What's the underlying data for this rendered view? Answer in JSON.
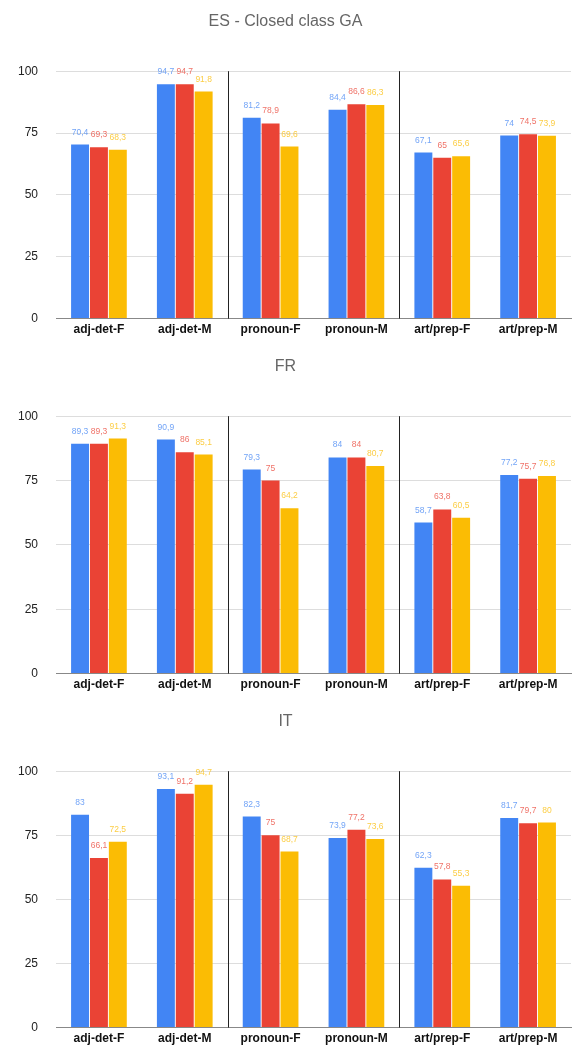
{
  "chart_data": [
    {
      "type": "bar",
      "title": "ES - Closed class GA",
      "categories": [
        "adj-det-F",
        "adj-det-M",
        "pronoun-F",
        "pronoun-M",
        "art/prep-F",
        "art/prep-M"
      ],
      "ylim": [
        0,
        100
      ],
      "yticks": [
        0,
        25,
        50,
        75,
        100
      ],
      "grid": "y",
      "series": [
        {
          "color": "#4285f4",
          "values": [
            70.4,
            94.7,
            81.2,
            84.4,
            67.1,
            74
          ],
          "value_labels": [
            "70,4",
            "94,7",
            "81,2",
            "84,4",
            "67,1",
            "74"
          ]
        },
        {
          "color": "#ea4335",
          "values": [
            69.3,
            94.7,
            78.9,
            86.6,
            65,
            74.5
          ],
          "value_labels": [
            "69,3",
            "94,7",
            "78,9",
            "86,6",
            "65",
            "74,5"
          ]
        },
        {
          "color": "#fbbc04",
          "values": [
            68.3,
            91.8,
            69.6,
            86.3,
            65.6,
            73.9
          ],
          "value_labels": [
            "68,3",
            "91,8",
            "69,6",
            "86,3",
            "65,6",
            "73,9"
          ]
        }
      ]
    },
    {
      "type": "bar",
      "title": "FR",
      "categories": [
        "adj-det-F",
        "adj-det-M",
        "pronoun-F",
        "pronoun-M",
        "art/prep-F",
        "art/prep-M"
      ],
      "ylim": [
        0,
        100
      ],
      "yticks": [
        0,
        25,
        50,
        75,
        100
      ],
      "grid": "y",
      "series": [
        {
          "color": "#4285f4",
          "values": [
            89.3,
            90.9,
            79.3,
            84,
            58.7,
            77.2
          ],
          "value_labels": [
            "89,3",
            "90,9",
            "79,3",
            "84",
            "58,7",
            "77,2"
          ]
        },
        {
          "color": "#ea4335",
          "values": [
            89.3,
            86,
            75,
            84,
            63.8,
            75.7
          ],
          "value_labels": [
            "89,3",
            "86",
            "75",
            "84",
            "63,8",
            "75,7"
          ]
        },
        {
          "color": "#fbbc04",
          "values": [
            91.3,
            85.1,
            64.2,
            80.7,
            60.5,
            76.8
          ],
          "value_labels": [
            "91,3",
            "85,1",
            "64,2",
            "80,7",
            "60,5",
            "76,8"
          ]
        }
      ]
    },
    {
      "type": "bar",
      "title": "IT",
      "categories": [
        "adj-det-F",
        "adj-det-M",
        "pronoun-F",
        "pronoun-M",
        "art/prep-F",
        "art/prep-M"
      ],
      "ylim": [
        0,
        100
      ],
      "yticks": [
        0,
        25,
        50,
        75,
        100
      ],
      "grid": "y",
      "series": [
        {
          "color": "#4285f4",
          "values": [
            83,
            93.1,
            82.3,
            73.9,
            62.3,
            81.7
          ],
          "value_labels": [
            "83",
            "93,1",
            "82,3",
            "73,9",
            "62,3",
            "81,7"
          ]
        },
        {
          "color": "#ea4335",
          "values": [
            66.1,
            91.2,
            75,
            77.2,
            57.8,
            79.7
          ],
          "value_labels": [
            "66,1",
            "91,2",
            "75",
            "77,2",
            "57,8",
            "79,7"
          ]
        },
        {
          "color": "#fbbc04",
          "values": [
            72.5,
            94.7,
            68.7,
            73.6,
            55.3,
            80
          ],
          "value_labels": [
            "72,5",
            "94,7",
            "68,7",
            "73,6",
            "55,3",
            "80"
          ]
        }
      ]
    }
  ]
}
